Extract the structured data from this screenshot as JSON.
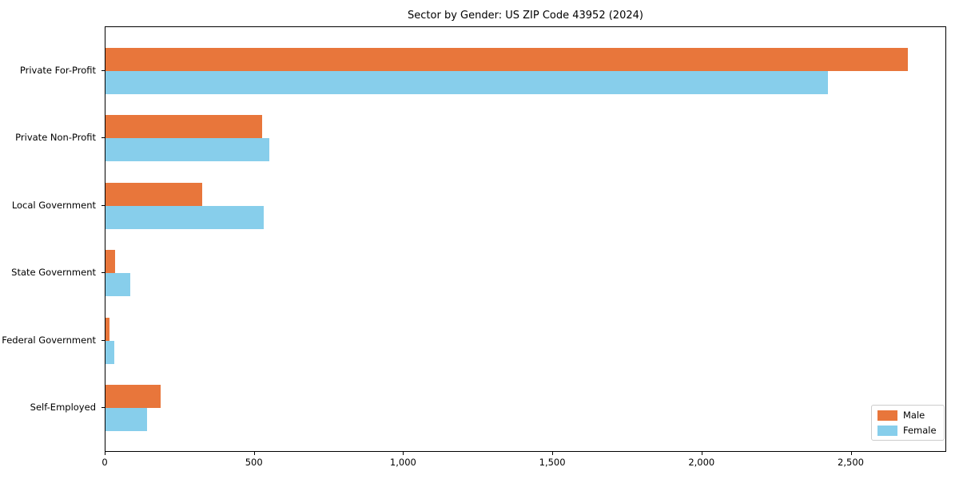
{
  "title": "Sector by Gender: US ZIP Code 43952 (2024)",
  "colors": {
    "male": "#e8763b",
    "female": "#87ceeb",
    "axis": "#000000",
    "legend_border": "#cccccc",
    "background": "#ffffff"
  },
  "chart_data": {
    "type": "bar",
    "orientation": "horizontal",
    "title": "Sector by Gender: US ZIP Code 43952 (2024)",
    "xlabel": "",
    "ylabel": "",
    "categories": [
      "Private For-Profit",
      "Private Non-Profit",
      "Local Government",
      "State Government",
      "Federal Government",
      "Self-Employed"
    ],
    "series": [
      {
        "name": "Male",
        "color": "#e8763b",
        "values": [
          2690,
          525,
          325,
          31,
          13,
          185
        ]
      },
      {
        "name": "Female",
        "color": "#87ceeb",
        "values": [
          2420,
          550,
          530,
          82,
          29,
          140
        ]
      }
    ],
    "xlim": [
      0,
      2820
    ],
    "xticks": [
      0,
      500,
      1000,
      1500,
      2000,
      2500
    ],
    "xtick_labels": [
      "0",
      "500",
      "1,000",
      "1,500",
      "2,000",
      "2,500"
    ],
    "grid": false,
    "legend": {
      "position": "lower right",
      "entries": [
        "Male",
        "Female"
      ]
    }
  }
}
